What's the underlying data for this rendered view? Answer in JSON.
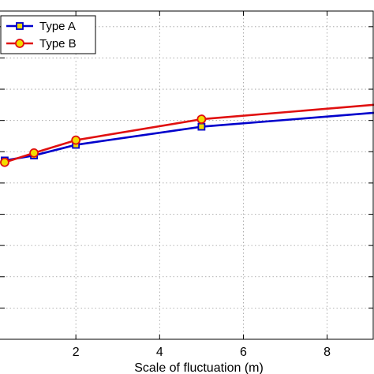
{
  "chart_data": {
    "type": "line",
    "xlabel": "Scale of fluctuation (m)",
    "ylabel": "",
    "title": "",
    "xlim": [
      0,
      9.1
    ],
    "ylim": [
      0,
      1.05
    ],
    "xticks": [
      2,
      4,
      6,
      8
    ],
    "yticks": [
      0.1,
      0.2,
      0.3,
      0.4,
      0.5,
      0.6,
      0.7,
      0.8,
      0.9,
      1.0
    ],
    "grid": true,
    "legend_position": "top-left",
    "series": [
      {
        "name": "Type A",
        "color": "#0000cc",
        "marker": "square",
        "marker_face": "#f2dd00",
        "x": [
          0.3,
          1,
          2,
          5,
          10
        ],
        "y": [
          0.572,
          0.588,
          0.622,
          0.68,
          0.734
        ]
      },
      {
        "name": "Type B",
        "color": "#e01010",
        "marker": "circle",
        "marker_face": "#f2dd00",
        "x": [
          0.3,
          1,
          2,
          5,
          10
        ],
        "y": [
          0.566,
          0.596,
          0.637,
          0.704,
          0.76
        ]
      }
    ]
  }
}
